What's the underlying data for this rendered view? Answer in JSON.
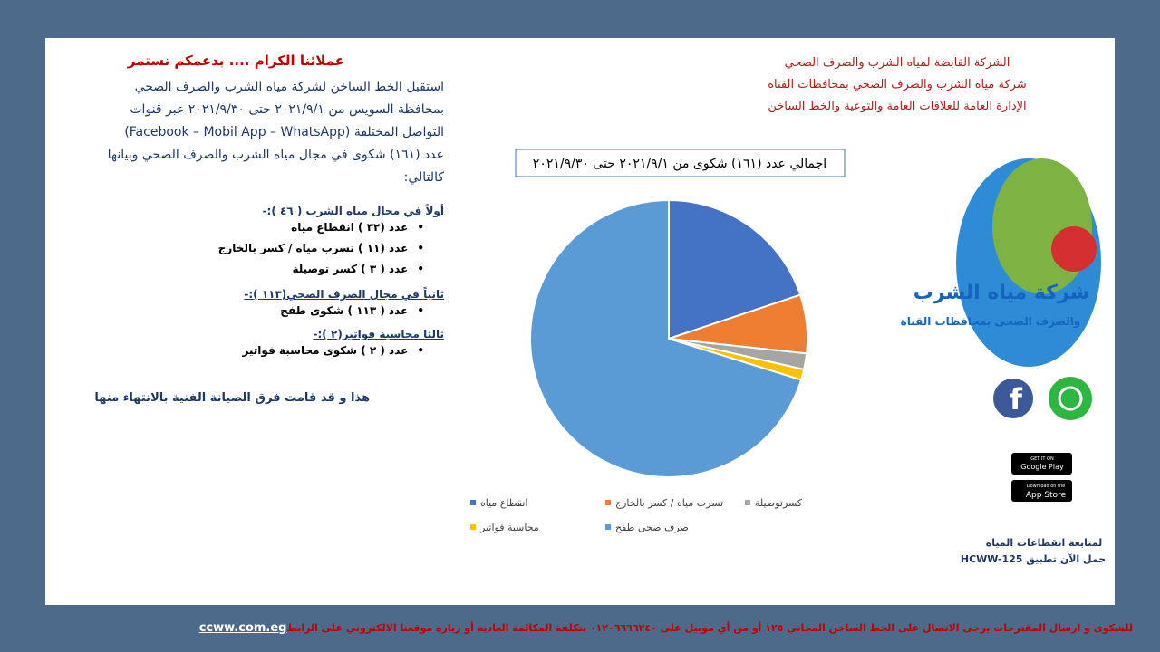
{
  "header": {
    "lines": [
      "الشركة القابضة لمياه الشرب والصرف الصحي",
      "شركة مياه الشرب والصرف الصحي بمحافظات القناة",
      "الإدارة العامة للعلاقات العامة والتوعية والخط الساخن"
    ]
  },
  "intro": {
    "title": "عملائنا الكرام .... بدعمكم نستمر",
    "lines": [
      "استقبل الخط الساخن لشركة مياه الشرب والصرف الصحي",
      "بمحافظة السويس من ٢٠٢١/٩/١ حتى ٢٠٢١/٩/٣٠ عبر قنوات",
      "التواصل المختلفة (Facebook – Mobil App – WhatsApp)",
      "عدد (١٦١) شكوى في مجال مياه الشرب والصرف الصحي وبيانها",
      "كالتالي:"
    ]
  },
  "sections": [
    {
      "heading": "أولاً في مجال مياه الشرب ( ٤٦ ):-",
      "items": [
        "عدد (٣٢ ) انقطاع مياه",
        "عدد (١١ ) تسرب مياه / كسر بالخارج",
        "عدد ( ٣ ) كسر توصيلة"
      ]
    },
    {
      "heading": "ثانياً في مجال الصرف الصحي(١١٣ ):-",
      "items": [
        "عدد ( ١١٣ ) شكوى طفح"
      ]
    },
    {
      "heading": "ثالثا محاسبة فواتير(٢ ):-",
      "items": [
        "عدد ( ٢ ) شكوى محاسبة فواتير"
      ]
    }
  ],
  "closing": "هذا و قد قامت فرق الصيانة الفنية بالانتهاء منها",
  "chart_data": {
    "type": "pie",
    "title": "اجمالي عدد (١٦١) شكوى من ٢٠٢١/٩/١ حتى ٢٠٢١/٩/٣٠",
    "categories": [
      "انقطاع مياه",
      "تسرب مياه / كسر بالخارج",
      "كسرتوصيلة",
      "محاسبة فواتير",
      "صرف صحى طفح"
    ],
    "values": [
      32,
      11,
      3,
      2,
      113
    ],
    "colors": [
      "#4472c4",
      "#ed7d31",
      "#a5a5a5",
      "#ffc000",
      "#5b9bd5"
    ]
  },
  "logo": {
    "name": "شركة مياه الشرب",
    "subtitle": "والصرف الصحى بمحافظات القناة"
  },
  "stores": [
    {
      "small": "GET IT ON",
      "big": "Google Play"
    },
    {
      "small": "Download on the",
      "big": "App Store"
    }
  ],
  "app": {
    "lines": [
      "لمتابعة انقطاعات المياه",
      "حمل الآن تطبيق HCWW-125"
    ]
  },
  "footer": {
    "text": "للشكوى و ارسال المقترحات يرجى الاتصال على الخط الساخن المجاني ١٢٥ أو من أي موبيل على ٠١٢٠٦٦٦٦٢٤٠ بتكلفة المكالمة العادية أو زيارة موقعنا الالكتروني على الرابط",
    "link": "ccww.com.eg"
  }
}
